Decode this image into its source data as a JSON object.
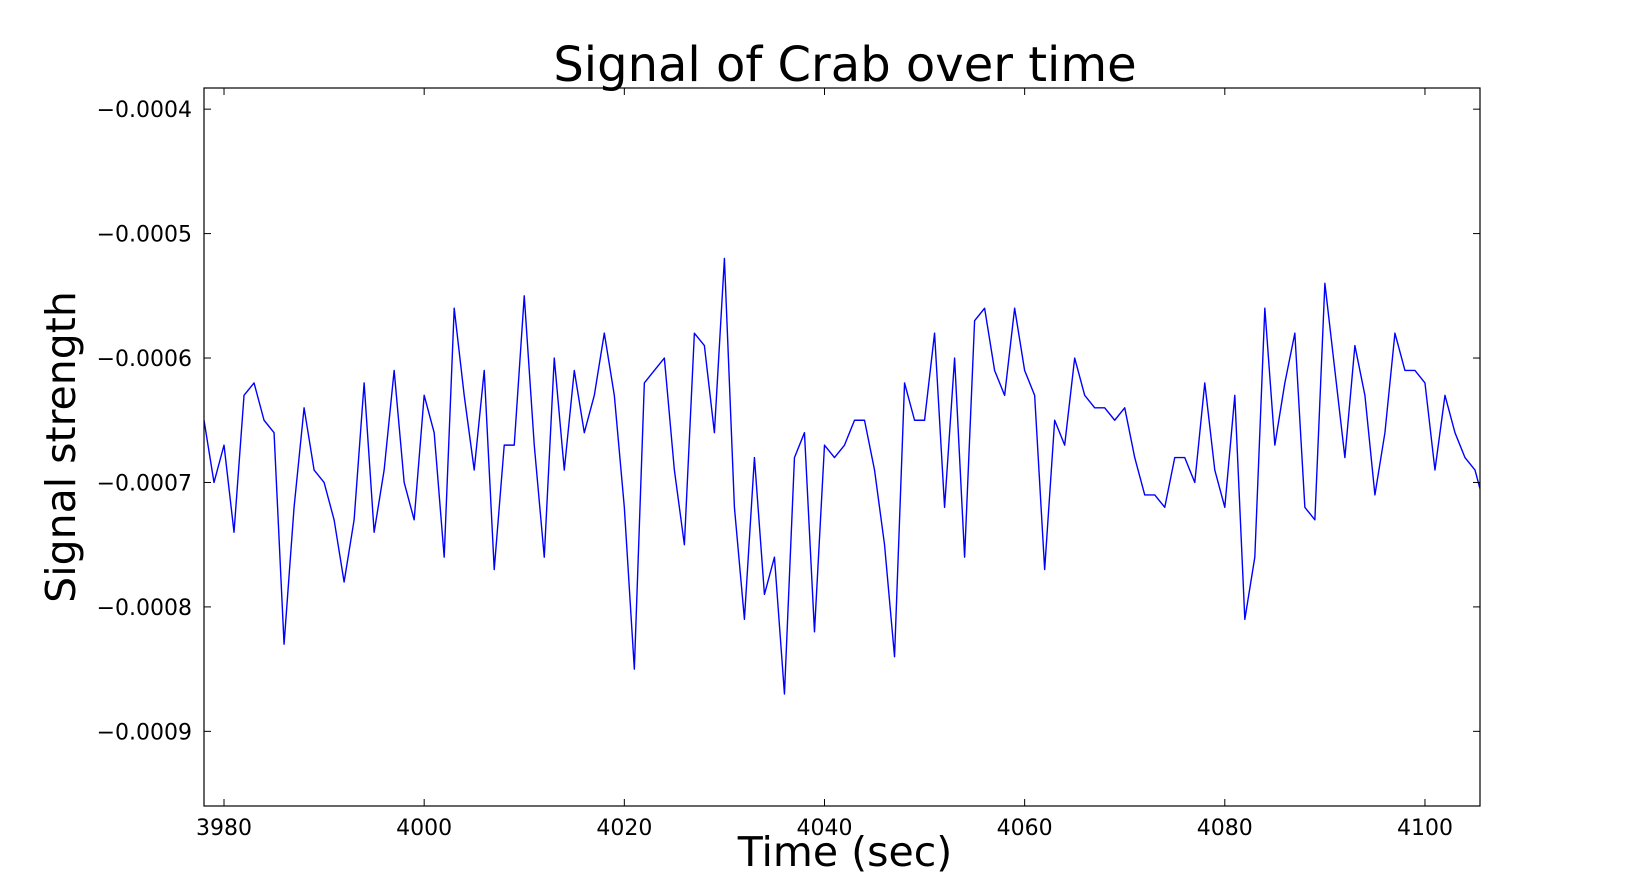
{
  "chart_data": {
    "type": "line",
    "title": "Signal of Crab over time",
    "xlabel": "Time (sec)",
    "ylabel": "Signal strength",
    "xlim": [
      3978,
      4105.5
    ],
    "ylim": [
      -0.00096,
      -0.000383
    ],
    "x_ticks": [
      3980,
      4000,
      4020,
      4040,
      4060,
      4080,
      4100
    ],
    "x_tick_labels": [
      "3980",
      "4000",
      "4020",
      "4040",
      "4060",
      "4080",
      "4100"
    ],
    "y_ticks": [
      -0.0004,
      -0.0005,
      -0.0006,
      -0.0007,
      -0.0008,
      -0.0009
    ],
    "y_tick_labels": [
      "−0.0004",
      "−0.0005",
      "−0.0006",
      "−0.0007",
      "−0.0008",
      "−0.0009"
    ],
    "grid": false,
    "legend": "none",
    "line_color": "#0000ff",
    "x_start": 3978,
    "x_step": 1,
    "series": [
      {
        "values": [
          -0.00065,
          -0.0007,
          -0.00067,
          -0.00074,
          -0.00063,
          -0.00062,
          -0.00065,
          -0.00066,
          -0.00083,
          -0.00072,
          -0.00064,
          -0.00069,
          -0.0007,
          -0.00073,
          -0.00078,
          -0.00073,
          -0.00062,
          -0.00074,
          -0.00069,
          -0.00061,
          -0.0007,
          -0.00073,
          -0.00063,
          -0.00066,
          -0.00076,
          -0.00056,
          -0.00063,
          -0.00069,
          -0.00061,
          -0.00077,
          -0.00067,
          -0.00067,
          -0.00055,
          -0.00067,
          -0.00076,
          -0.0006,
          -0.00069,
          -0.00061,
          -0.00066,
          -0.00063,
          -0.00058,
          -0.00063,
          -0.00072,
          -0.00085,
          -0.00062,
          -0.00061,
          -0.0006,
          -0.00069,
          -0.00075,
          -0.00058,
          -0.00059,
          -0.00066,
          -0.00052,
          -0.00072,
          -0.00081,
          -0.00068,
          -0.00079,
          -0.00076,
          -0.00087,
          -0.00068,
          -0.00066,
          -0.00082,
          -0.00067,
          -0.00068,
          -0.00067,
          -0.00065,
          -0.00065,
          -0.00069,
          -0.00075,
          -0.00084,
          -0.00062,
          -0.00065,
          -0.00065,
          -0.00058,
          -0.00072,
          -0.0006,
          -0.00076,
          -0.00057,
          -0.00056,
          -0.00061,
          -0.00063,
          -0.00056,
          -0.00061,
          -0.00063,
          -0.00077,
          -0.00065,
          -0.00067,
          -0.0006,
          -0.00063,
          -0.00064,
          -0.00064,
          -0.00065,
          -0.00064,
          -0.00068,
          -0.00071,
          -0.00071,
          -0.00072,
          -0.00068,
          -0.00068,
          -0.0007,
          -0.00062,
          -0.00069,
          -0.00072,
          -0.00063,
          -0.00081,
          -0.00076,
          -0.00056,
          -0.00067,
          -0.00062,
          -0.00058,
          -0.00072,
          -0.00073,
          -0.00054,
          -0.00061,
          -0.00068,
          -0.00059,
          -0.00063,
          -0.00071,
          -0.00066,
          -0.00058,
          -0.00061,
          -0.00061,
          -0.00062,
          -0.00069,
          -0.00063,
          -0.00066,
          -0.00068,
          -0.00069,
          -0.00072
        ]
      }
    ]
  }
}
